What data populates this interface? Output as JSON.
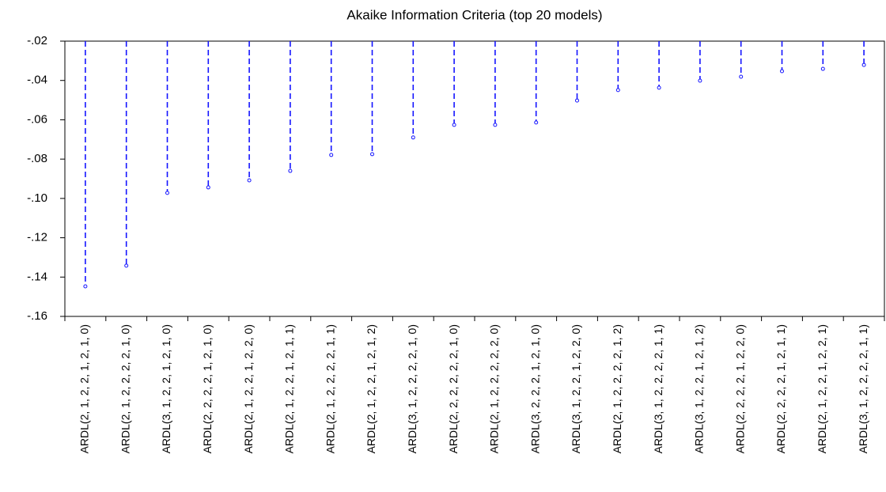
{
  "chart_data": {
    "type": "stem",
    "title": "Akaike Information Criteria (top 20 models)",
    "categories": [
      "ARDL(2, 1, 2, 2, 1, 2, 1, 0)",
      "ARDL(2, 1, 2, 2, 2, 2, 1, 0)",
      "ARDL(3, 1, 2, 2, 1, 2, 1, 0)",
      "ARDL(2, 2, 2, 2, 1, 2, 1, 0)",
      "ARDL(2, 1, 2, 2, 1, 2, 2, 0)",
      "ARDL(2, 1, 2, 2, 1, 2, 1, 1)",
      "ARDL(2, 1, 2, 2, 2, 2, 1, 1)",
      "ARDL(2, 1, 2, 2, 1, 2, 1, 2)",
      "ARDL(3, 1, 2, 2, 2, 2, 1, 0)",
      "ARDL(2, 2, 2, 2, 2, 2, 1, 0)",
      "ARDL(2, 1, 2, 2, 2, 2, 2, 0)",
      "ARDL(3, 2, 2, 2, 1, 2, 1, 0)",
      "ARDL(3, 1, 2, 2, 1, 2, 2, 0)",
      "ARDL(2, 1, 2, 2, 2, 2, 1, 2)",
      "ARDL(3, 1, 2, 2, 2, 2, 1, 1)",
      "ARDL(3, 1, 2, 2, 1, 2, 1, 2)",
      "ARDL(2, 2, 2, 2, 1, 2, 2, 0)",
      "ARDL(2, 2, 2, 2, 1, 2, 1, 1)",
      "ARDL(2, 1, 2, 2, 1, 2, 2, 1)",
      "ARDL(3, 1, 2, 2, 2, 2, 1, 1)"
    ],
    "values": [
      -0.1447,
      -0.1342,
      -0.0972,
      -0.0944,
      -0.0908,
      -0.086,
      -0.0779,
      -0.0775,
      -0.069,
      -0.0626,
      -0.0626,
      -0.0614,
      -0.0502,
      -0.0449,
      -0.0437,
      -0.0401,
      -0.0381,
      -0.0353,
      -0.0341,
      -0.0321
    ],
    "color": "#1414ff",
    "ylim": [
      -0.16,
      -0.02
    ],
    "yticks": [
      {
        "value": -0.16,
        "label": "-.16"
      },
      {
        "value": -0.14,
        "label": "-.14"
      },
      {
        "value": -0.12,
        "label": "-.12"
      },
      {
        "value": -0.1,
        "label": "-.10"
      },
      {
        "value": -0.08,
        "label": "-.08"
      },
      {
        "value": -0.06,
        "label": "-.06"
      },
      {
        "value": -0.04,
        "label": "-.04"
      },
      {
        "value": -0.02,
        "label": "-.02"
      }
    ]
  }
}
